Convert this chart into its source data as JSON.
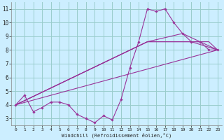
{
  "xlabel": "Windchill (Refroidissement éolien,°C)",
  "background_color": "#cceeff",
  "grid_color": "#99cccc",
  "line_color": "#993399",
  "xlim": [
    -0.5,
    23.5
  ],
  "ylim": [
    2.5,
    11.5
  ],
  "yticks": [
    3,
    4,
    5,
    6,
    7,
    8,
    9,
    10,
    11
  ],
  "xticks": [
    0,
    1,
    2,
    3,
    4,
    5,
    6,
    7,
    8,
    9,
    10,
    11,
    12,
    13,
    14,
    15,
    16,
    17,
    18,
    19,
    20,
    21,
    22,
    23
  ],
  "main_line": {
    "x": [
      0,
      1,
      2,
      3,
      4,
      5,
      6,
      7,
      8,
      9,
      10,
      11,
      12,
      13,
      14,
      15,
      16,
      17,
      18,
      19,
      20,
      21,
      22,
      23
    ],
    "y": [
      4.0,
      4.7,
      3.5,
      3.8,
      4.2,
      4.2,
      4.0,
      3.3,
      3.0,
      2.7,
      3.2,
      2.9,
      4.4,
      6.7,
      8.6,
      11.0,
      10.8,
      11.0,
      10.0,
      9.2,
      8.6,
      8.6,
      8.0,
      8.0
    ]
  },
  "straight_lines": [
    {
      "x": [
        0,
        23
      ],
      "y": [
        4.0,
        8.0
      ]
    },
    {
      "x": [
        0,
        15,
        19,
        23
      ],
      "y": [
        4.0,
        8.6,
        9.2,
        8.0
      ]
    },
    {
      "x": [
        0,
        15,
        20,
        23
      ],
      "y": [
        4.0,
        8.6,
        8.6,
        8.0
      ]
    },
    {
      "x": [
        0,
        15,
        22,
        23
      ],
      "y": [
        4.0,
        8.6,
        8.6,
        8.0
      ]
    }
  ]
}
